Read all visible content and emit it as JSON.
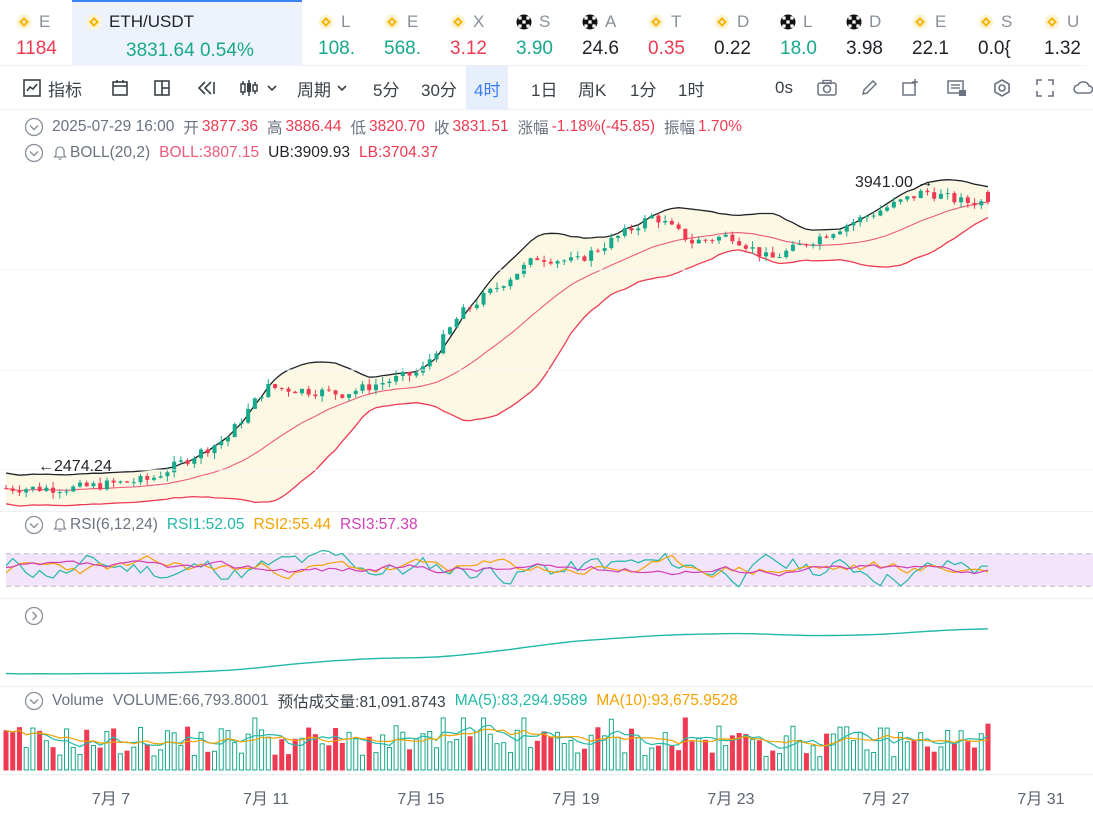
{
  "ticker": [
    {
      "symbol": "E",
      "value": "1184",
      "dir": "dn",
      "icon": "binance-coin-icon"
    },
    {
      "symbol": "ETH/USDT",
      "value": "3831.64",
      "change": "0.54%",
      "dir": "up",
      "icon": "binance-coin-icon",
      "active": true
    },
    {
      "symbol": "L",
      "value": "108.",
      "dir": "up",
      "icon": "binance-coin-icon"
    },
    {
      "symbol": "E",
      "value": "568.",
      "dir": "up",
      "icon": "binance-coin-icon"
    },
    {
      "symbol": "X",
      "value": "3.12",
      "dir": "dn",
      "icon": "binance-coin-icon"
    },
    {
      "symbol": "S",
      "value": "3.90",
      "dir": "up",
      "icon": "okx-icon"
    },
    {
      "symbol": "A",
      "value": "24.6",
      "dir": "neutral",
      "icon": "okx-icon"
    },
    {
      "symbol": "T",
      "value": "0.35",
      "dir": "dn",
      "icon": "binance-coin-icon"
    },
    {
      "symbol": "D",
      "value": "0.22",
      "dir": "neutral",
      "icon": "binance-coin-icon"
    },
    {
      "symbol": "L",
      "value": "18.0",
      "dir": "up",
      "icon": "okx-icon"
    },
    {
      "symbol": "D",
      "value": "3.98",
      "dir": "neutral",
      "icon": "okx-icon"
    },
    {
      "symbol": "E",
      "value": "22.1",
      "dir": "neutral",
      "icon": "binance-coin-icon"
    },
    {
      "symbol": "S",
      "value": "0.0{",
      "dir": "neutral",
      "icon": "binance-coin-icon"
    },
    {
      "symbol": "U",
      "value": "1.32",
      "dir": "neutral",
      "icon": "binance-coin-icon"
    }
  ],
  "toolbar": {
    "indicator_label": "指标",
    "period_label": "周期",
    "timeframes": [
      "5分",
      "30分",
      "4时",
      "1日",
      "周K",
      "1分",
      "1时"
    ],
    "active_timeframe": "4时",
    "countdown": "0s"
  },
  "ohlc": {
    "date": "2025-07-29 16:00",
    "open_label": "开",
    "open": "3877.36",
    "high_label": "高",
    "high": "3886.44",
    "low_label": "低",
    "low": "3820.70",
    "close_label": "收",
    "close": "3831.51",
    "change_label": "涨幅",
    "change": "-1.18%(-45.85)",
    "amp_label": "振幅",
    "amp": "1.70%"
  },
  "boll": {
    "name": "BOLL(20,2)",
    "mid": "BOLL:3807.15",
    "ub": "UB:3909.93",
    "lb": "LB:3704.37"
  },
  "rsi": {
    "name": "RSI(6,12,24)",
    "rsi1": "RSI1:52.05",
    "rsi2": "RSI2:55.44",
    "rsi3": "RSI3:57.38"
  },
  "volume": {
    "name": "Volume",
    "volume": "VOLUME:66,793.8001",
    "est": "预估成交量:81,091.8743",
    "ma5": "MA(5):83,294.9589",
    "ma10": "MA(10):93,675.9528"
  },
  "annotations": {
    "high_mark": "3941.00",
    "low_mark": "2474.24"
  },
  "x_axis": [
    "7月 7",
    "7月 11",
    "7月 15",
    "7月 19",
    "7月 23",
    "7月 27",
    "7月 31"
  ],
  "colors": {
    "up": "#17a98b",
    "down": "#ee3a52",
    "boll_mid": "#ee5b7a",
    "boll_ub": "#1f2329",
    "boll_lb": "#ee3a52",
    "band_fill": "#fdf8e4",
    "rsi1": "#22b8a7",
    "rsi2": "#f5a300",
    "rsi3": "#d43fb7",
    "accent": "#3b82f6"
  },
  "chart_data": {
    "type": "candlestick",
    "timeframe": "4时",
    "price_anchors": [
      {
        "date": "7月 6",
        "price": 2530
      },
      {
        "date": "7月 8",
        "price": 2570
      },
      {
        "date": "7月 10",
        "price": 2760
      },
      {
        "date": "7月 11",
        "price": 2990
      },
      {
        "date": "7月 13",
        "price": 2960
      },
      {
        "date": "7月 15",
        "price": 3060
      },
      {
        "date": "7月 16",
        "price": 3320
      },
      {
        "date": "7月 17",
        "price": 3450
      },
      {
        "date": "7月 18",
        "price": 3580
      },
      {
        "date": "7月 19",
        "price": 3560
      },
      {
        "date": "7月 21",
        "price": 3770
      },
      {
        "date": "7月 22",
        "price": 3650
      },
      {
        "date": "7月 23",
        "price": 3680
      },
      {
        "date": "7月 24",
        "price": 3570
      },
      {
        "date": "7月 26",
        "price": 3730
      },
      {
        "date": "7月 28",
        "price": 3880
      },
      {
        "date": "7月 29",
        "price": 3831.51
      }
    ],
    "high": 3941.0,
    "low": 2474.24
  }
}
